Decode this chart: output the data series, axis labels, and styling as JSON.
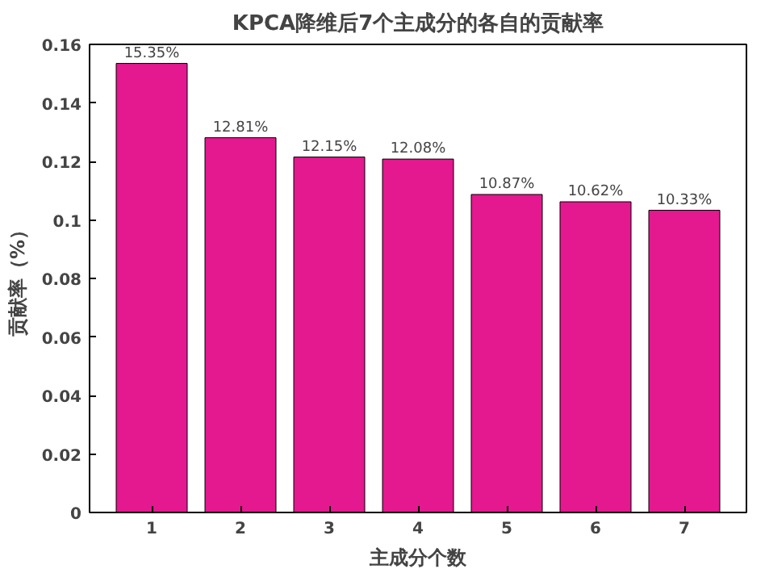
{
  "chart_data": {
    "type": "bar",
    "title": "KPCA降维后7个主成分的各自的贡献率",
    "xlabel": "主成分个数",
    "ylabel": "贡献率（%）",
    "categories": [
      "1",
      "2",
      "3",
      "4",
      "5",
      "6",
      "7"
    ],
    "values": [
      0.1535,
      0.1281,
      0.1215,
      0.1208,
      0.1087,
      0.1062,
      0.1033
    ],
    "value_labels": [
      "15.35%",
      "12.81%",
      "12.15%",
      "12.08%",
      "10.87%",
      "10.62%",
      "10.33%"
    ],
    "color": "#e4188f",
    "ylim": [
      0,
      0.16
    ],
    "yticks": [
      0,
      0.02,
      0.04,
      0.06,
      0.08,
      0.1,
      0.12,
      0.14,
      0.16
    ],
    "grid": false
  }
}
